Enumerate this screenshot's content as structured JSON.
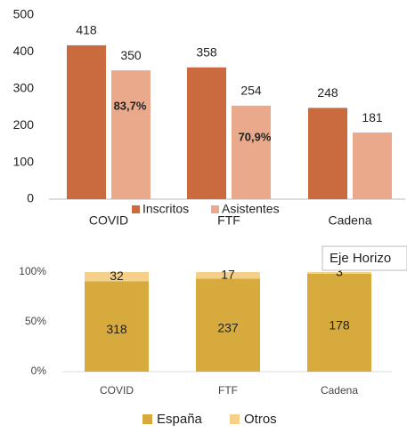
{
  "chart_data": [
    {
      "type": "bar",
      "categories": [
        "COVID",
        "FTF",
        "Cadena"
      ],
      "series": [
        {
          "name": "Inscritos",
          "color": "#c96a3f",
          "values": [
            418,
            358,
            248
          ]
        },
        {
          "name": "Asistentes",
          "color": "#eaa98b",
          "values": [
            350,
            254,
            181
          ]
        }
      ],
      "annotations": [
        "83,7%",
        "70,9%"
      ],
      "ylim": [
        0,
        500
      ],
      "yticks": [
        0,
        100,
        200,
        300,
        400,
        500
      ],
      "legend": "bottom"
    },
    {
      "type": "stacked_percent_bar",
      "categories": [
        "COVID",
        "FTF",
        "Cadena"
      ],
      "series": [
        {
          "name": "España",
          "color": "#d6aa3c",
          "values": [
            318,
            237,
            178
          ]
        },
        {
          "name": "Otros",
          "color": "#f5d08a",
          "values": [
            32,
            17,
            3
          ]
        }
      ],
      "ylim": [
        0,
        100
      ],
      "yticks": [
        {
          "value": 0,
          "label": "0%"
        },
        {
          "value": 50,
          "label": "50%"
        },
        {
          "value": 100,
          "label": "100%"
        }
      ],
      "legend": "bottom"
    }
  ],
  "tooltip": "Eje Horizo"
}
